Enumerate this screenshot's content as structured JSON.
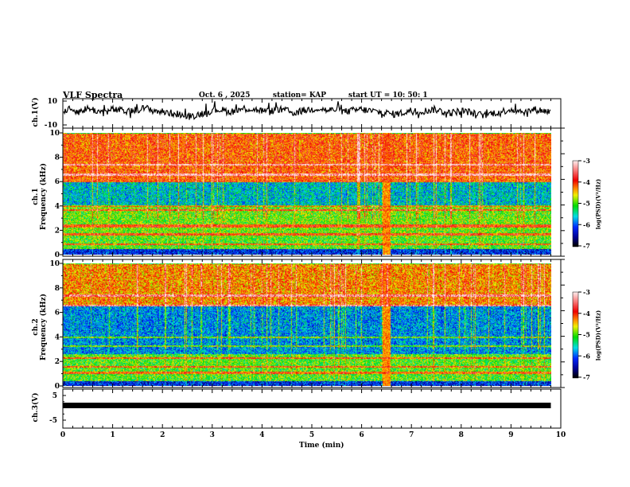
{
  "header": {
    "title": "VLF Spectra",
    "date": "Oct. 6  , 2025",
    "station": "station= KAP",
    "start": "start  UT  =   10: 50: 1"
  },
  "colors": {
    "axis": "#000000",
    "background": "#ffffff"
  },
  "chart_data": [
    {
      "type": "line",
      "name": "ch1-waveform",
      "ylabel": "ch.1(V)",
      "ylim": [
        -10,
        10
      ],
      "yticks": [
        "10",
        "-10"
      ],
      "xlim": [
        0,
        10
      ],
      "x_end": 9.8,
      "envelope_mean": [
        2,
        3,
        1,
        4,
        2,
        0,
        3,
        2,
        1,
        3,
        4,
        2,
        1,
        0,
        -1,
        -3,
        -2,
        0,
        2,
        3,
        1,
        2,
        4,
        3,
        2,
        1,
        3,
        2,
        0,
        2,
        3,
        4,
        2,
        3,
        1,
        2,
        3,
        2,
        1,
        0,
        -1,
        0,
        2,
        1,
        2,
        3,
        1,
        0,
        2,
        1,
        -1,
        -2,
        0,
        1,
        3,
        2,
        1,
        3,
        2,
        1
      ]
    },
    {
      "type": "heatmap",
      "name": "ch1-spectrogram",
      "ylabel": "ch.1\nFrequency  (kHz)",
      "ylim": [
        0,
        10
      ],
      "yticks": [
        "0",
        "2",
        "4",
        "6",
        "8",
        "10"
      ],
      "xlim": [
        0,
        10
      ],
      "colorbar": {
        "label": "log(PSD)(V²/Hz)",
        "range": [
          -7,
          -3
        ],
        "ticks": [
          "-3",
          "-4",
          "-5",
          "-6",
          "-7"
        ]
      },
      "bands_kHz_logPSD": [
        [
          0,
          0.5,
          -6.2
        ],
        [
          0.5,
          1.5,
          -5.0
        ],
        [
          1.5,
          4,
          -4.9
        ],
        [
          4,
          6,
          -5.6
        ],
        [
          6,
          10,
          -4.1
        ]
      ],
      "line_frequencies_kHz": [
        0.9,
        1.7,
        2.3,
        2.45,
        3.7,
        4.0,
        6.6,
        7.4
      ],
      "broadband_event_min": 6.5
    },
    {
      "type": "heatmap",
      "name": "ch2-spectrogram",
      "ylabel": "ch.2\nFrequency  (kHz)",
      "ylim": [
        0,
        10
      ],
      "yticks": [
        "0",
        "2",
        "4",
        "6",
        "8",
        "10"
      ],
      "xlim": [
        0,
        10
      ],
      "colorbar": {
        "label": "log(PSD)(V²/Hz)",
        "range": [
          -7,
          -3
        ],
        "ticks": [
          "-3",
          "-4",
          "-5",
          "-6",
          "-7"
        ]
      },
      "bands_kHz_logPSD": [
        [
          0,
          0.4,
          -6.2
        ],
        [
          0.4,
          2.6,
          -5.0
        ],
        [
          2.6,
          6.5,
          -5.8
        ],
        [
          6.5,
          10,
          -4.3
        ]
      ],
      "line_frequencies_kHz": [
        1.1,
        1.6,
        2.3,
        3.3,
        4.0,
        6.6,
        7.4
      ],
      "broadband_event_min": 6.5
    },
    {
      "type": "line",
      "name": "ch3-waveform",
      "ylabel": "ch.3(V)",
      "ylim": [
        -5,
        5
      ],
      "yticks": [
        "5",
        "-5"
      ],
      "value": 0.8,
      "xlim": [
        0,
        10
      ],
      "x_end": 9.8,
      "xlabel": "Time  (min)",
      "xticks": [
        "0",
        "1",
        "2",
        "3",
        "4",
        "5",
        "6",
        "7",
        "8",
        "9",
        "10"
      ]
    }
  ]
}
